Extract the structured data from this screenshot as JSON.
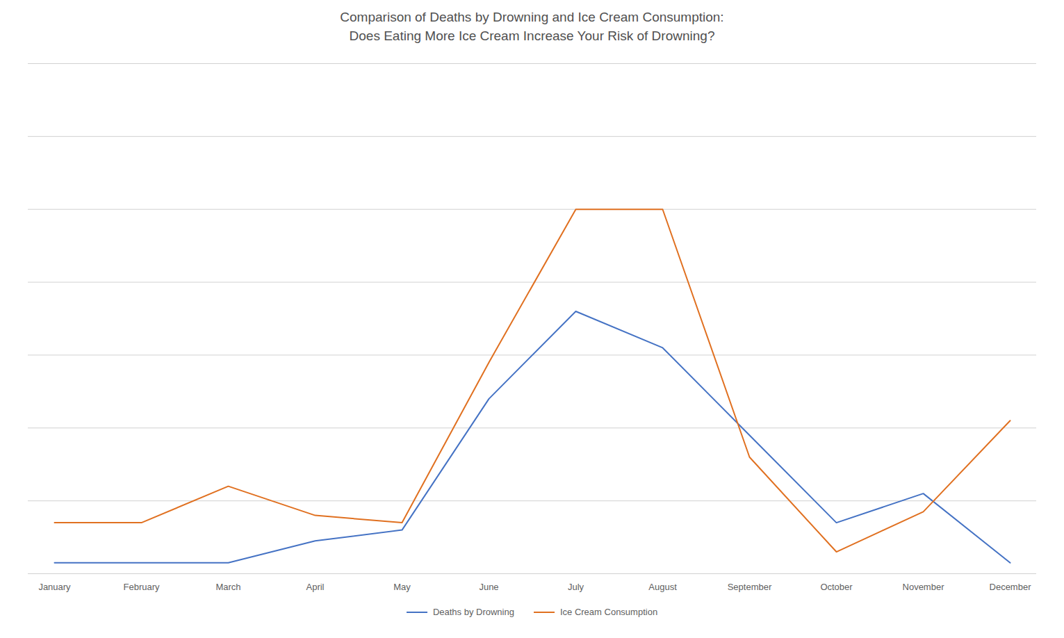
{
  "chart_data": {
    "type": "line",
    "title": "Comparison of Deaths by Drowning and Ice Cream Consumption:\nDoes Eating More Ice Cream Increase Your Risk of Drowning?",
    "categories": [
      "January",
      "February",
      "March",
      "April",
      "May",
      "June",
      "July",
      "August",
      "September",
      "October",
      "November",
      "December"
    ],
    "series": [
      {
        "name": "Deaths by Drowning",
        "color": "#4472C4",
        "values": [
          3,
          3,
          3,
          9,
          12,
          48,
          72,
          62,
          38,
          14,
          22,
          3
        ]
      },
      {
        "name": "Ice Cream Consumption",
        "color": "#E07020",
        "values": [
          14,
          14,
          24,
          16,
          14,
          58,
          100,
          100,
          32,
          6,
          17,
          42
        ]
      }
    ],
    "ylim": [
      0,
      140
    ],
    "yticks": [
      0,
      20,
      40,
      60,
      80,
      100,
      120,
      140
    ],
    "grid": true,
    "tick_labels": "x",
    "legend": "bottom"
  }
}
